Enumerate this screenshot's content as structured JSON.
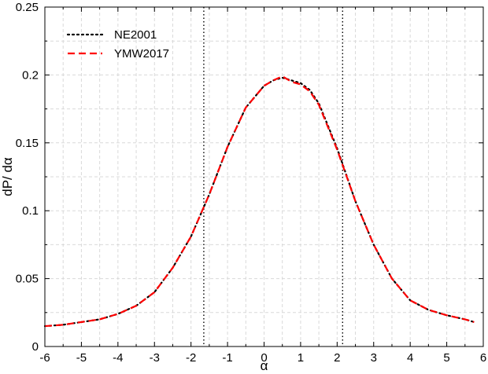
{
  "chart_data": {
    "type": "line",
    "xlabel": "α",
    "ylabel": "dP/ dα",
    "xlim": [
      -6,
      6
    ],
    "ylim": [
      0,
      0.25
    ],
    "xticks": [
      "-6",
      "-5",
      "-4",
      "-3",
      "-2",
      "-1",
      "0",
      "1",
      "2",
      "3",
      "4",
      "5",
      "6"
    ],
    "yticks": [
      "0",
      "0.05",
      "0.1",
      "0.15",
      "0.2",
      "0.25"
    ],
    "grid": true,
    "legend_position": "top-left",
    "vertical_lines": [
      -1.65,
      2.15
    ],
    "series": [
      {
        "name": "NE2001",
        "color": "#000000",
        "style": "dotted",
        "x": [
          -6.0,
          -5.5,
          -5.0,
          -4.5,
          -4.0,
          -3.5,
          -3.0,
          -2.5,
          -2.0,
          -1.5,
          -1.0,
          -0.5,
          0.0,
          0.25,
          0.5,
          0.75,
          1.0,
          1.25,
          1.5,
          2.0,
          2.5,
          3.0,
          3.5,
          4.0,
          4.5,
          5.0,
          5.5,
          5.75
        ],
        "y": [
          0.015,
          0.016,
          0.018,
          0.02,
          0.024,
          0.03,
          0.04,
          0.058,
          0.081,
          0.112,
          0.147,
          0.176,
          0.192,
          0.196,
          0.198,
          0.196,
          0.194,
          0.189,
          0.179,
          0.146,
          0.107,
          0.075,
          0.05,
          0.034,
          0.027,
          0.023,
          0.02,
          0.018
        ]
      },
      {
        "name": "YMW2017",
        "color": "#ff0000",
        "style": "dashed",
        "x": [
          -6.0,
          -5.5,
          -5.0,
          -4.5,
          -4.0,
          -3.5,
          -3.0,
          -2.5,
          -2.0,
          -1.5,
          -1.0,
          -0.5,
          0.0,
          0.25,
          0.5,
          0.75,
          1.0,
          1.25,
          1.5,
          2.0,
          2.5,
          3.0,
          3.5,
          4.0,
          4.5,
          5.0,
          5.5,
          5.75
        ],
        "y": [
          0.015,
          0.016,
          0.018,
          0.02,
          0.024,
          0.03,
          0.04,
          0.058,
          0.081,
          0.112,
          0.147,
          0.176,
          0.192,
          0.196,
          0.199,
          0.195,
          0.193,
          0.188,
          0.178,
          0.145,
          0.107,
          0.075,
          0.05,
          0.034,
          0.027,
          0.023,
          0.02,
          0.018
        ]
      }
    ]
  }
}
